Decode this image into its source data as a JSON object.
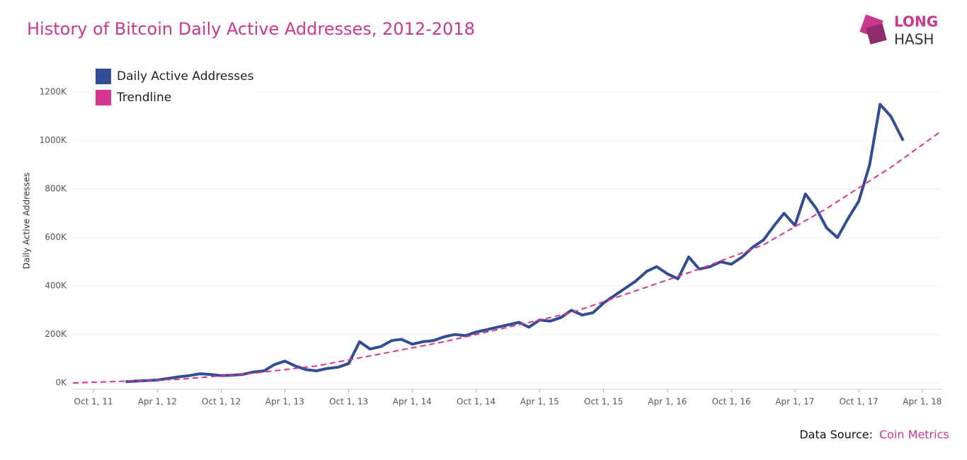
{
  "chart_data": {
    "type": "line",
    "title": "History of Bitcoin Daily Active Addresses, 2012-2018",
    "y_label": "Daily Active Addresses",
    "source_label": "Data Source:",
    "source": "Coin Metrics",
    "logo": [
      "LONG",
      "HASH"
    ],
    "legend": "top-left",
    "grid": true,
    "x": [
      "2012-01-01",
      "2012-02-01",
      "2012-03-01",
      "2012-04-01",
      "2012-05-01",
      "2012-06-01",
      "2012-07-01",
      "2012-08-01",
      "2012-09-01",
      "2012-10-01",
      "2012-11-01",
      "2012-12-01",
      "2013-01-01",
      "2013-02-01",
      "2013-03-01",
      "2013-04-01",
      "2013-05-01",
      "2013-06-01",
      "2013-07-01",
      "2013-08-01",
      "2013-09-01",
      "2013-10-01",
      "2013-11-01",
      "2013-12-01",
      "2014-01-01",
      "2014-02-01",
      "2014-03-01",
      "2014-04-01",
      "2014-05-01",
      "2014-06-01",
      "2014-07-01",
      "2014-08-01",
      "2014-09-01",
      "2014-10-01",
      "2014-11-01",
      "2014-12-01",
      "2015-01-01",
      "2015-02-01",
      "2015-03-01",
      "2015-04-01",
      "2015-05-01",
      "2015-06-01",
      "2015-07-01",
      "2015-08-01",
      "2015-09-01",
      "2015-10-01",
      "2015-11-01",
      "2015-12-01",
      "2016-01-01",
      "2016-02-01",
      "2016-03-01",
      "2016-04-01",
      "2016-05-01",
      "2016-06-01",
      "2016-07-01",
      "2016-08-01",
      "2016-09-01",
      "2016-10-01",
      "2016-11-01",
      "2016-12-01",
      "2017-01-01",
      "2017-02-01",
      "2017-03-01",
      "2017-04-01",
      "2017-05-01",
      "2017-06-01",
      "2017-07-01",
      "2017-08-01",
      "2017-09-01",
      "2017-10-01",
      "2017-11-01",
      "2017-12-01",
      "2018-01-01",
      "2018-02-05"
    ],
    "series": [
      {
        "name": "Daily Active Addresses",
        "color": "#334d94",
        "values": [
          5000,
          8000,
          10000,
          12000,
          18000,
          25000,
          30000,
          38000,
          35000,
          30000,
          32000,
          35000,
          45000,
          50000,
          75000,
          90000,
          70000,
          55000,
          50000,
          60000,
          65000,
          80000,
          170000,
          140000,
          150000,
          175000,
          180000,
          160000,
          170000,
          175000,
          190000,
          200000,
          195000,
          210000,
          220000,
          230000,
          240000,
          250000,
          230000,
          260000,
          255000,
          270000,
          300000,
          280000,
          290000,
          330000,
          360000,
          390000,
          420000,
          460000,
          480000,
          450000,
          430000,
          520000,
          470000,
          480000,
          500000,
          490000,
          520000,
          560000,
          590000,
          650000,
          700000,
          650000,
          780000,
          720000,
          640000,
          600000,
          680000,
          750000,
          900000,
          1150000,
          1100000,
          1000000
        ]
      },
      {
        "name": "Trendline",
        "color": "#d9348f",
        "dashed": true,
        "x": [
          "2011-08-03",
          "2012-06-01",
          "2013-01-01",
          "2013-07-01",
          "2014-01-01",
          "2014-07-01",
          "2015-01-01",
          "2015-07-01",
          "2016-01-01",
          "2016-07-01",
          "2017-01-01",
          "2017-07-01",
          "2018-01-01",
          "2018-05-26"
        ],
        "values": [
          0,
          15000,
          40000,
          70000,
          120000,
          170000,
          230000,
          290000,
          380000,
          470000,
          570000,
          720000,
          890000,
          1040000
        ]
      }
    ],
    "xlim": [
      "2011-08-03",
      "2018-05-26"
    ],
    "xticks": [
      {
        "value": "2011-10-01",
        "label": "Oct 1, 11"
      },
      {
        "value": "2012-04-01",
        "label": "Apr 1, 12"
      },
      {
        "value": "2012-10-01",
        "label": "Oct 1, 12"
      },
      {
        "value": "2013-04-01",
        "label": "Apr 1, 13"
      },
      {
        "value": "2013-10-01",
        "label": "Oct 1, 13"
      },
      {
        "value": "2014-04-01",
        "label": "Apr 1, 14"
      },
      {
        "value": "2014-10-01",
        "label": "Oct 1, 14"
      },
      {
        "value": "2015-04-01",
        "label": "Apr 1, 15"
      },
      {
        "value": "2015-10-01",
        "label": "Oct 1, 15"
      },
      {
        "value": "2016-04-01",
        "label": "Apr 1, 16"
      },
      {
        "value": "2016-10-01",
        "label": "Oct 1, 16"
      },
      {
        "value": "2017-04-01",
        "label": "Apr 1, 17"
      },
      {
        "value": "2017-10-01",
        "label": "Oct 1, 17"
      },
      {
        "value": "2018-04-01",
        "label": "Apr 1, 18"
      }
    ],
    "ylim": [
      -26000,
      1300000
    ],
    "yticks": [
      {
        "value": 0,
        "label": "0K"
      },
      {
        "value": 200000,
        "label": "200K"
      },
      {
        "value": 400000,
        "label": "400K"
      },
      {
        "value": 600000,
        "label": "600K"
      },
      {
        "value": 800000,
        "label": "800K"
      },
      {
        "value": 1000000,
        "label": "1000K"
      },
      {
        "value": 1200000,
        "label": "1200K"
      }
    ]
  }
}
